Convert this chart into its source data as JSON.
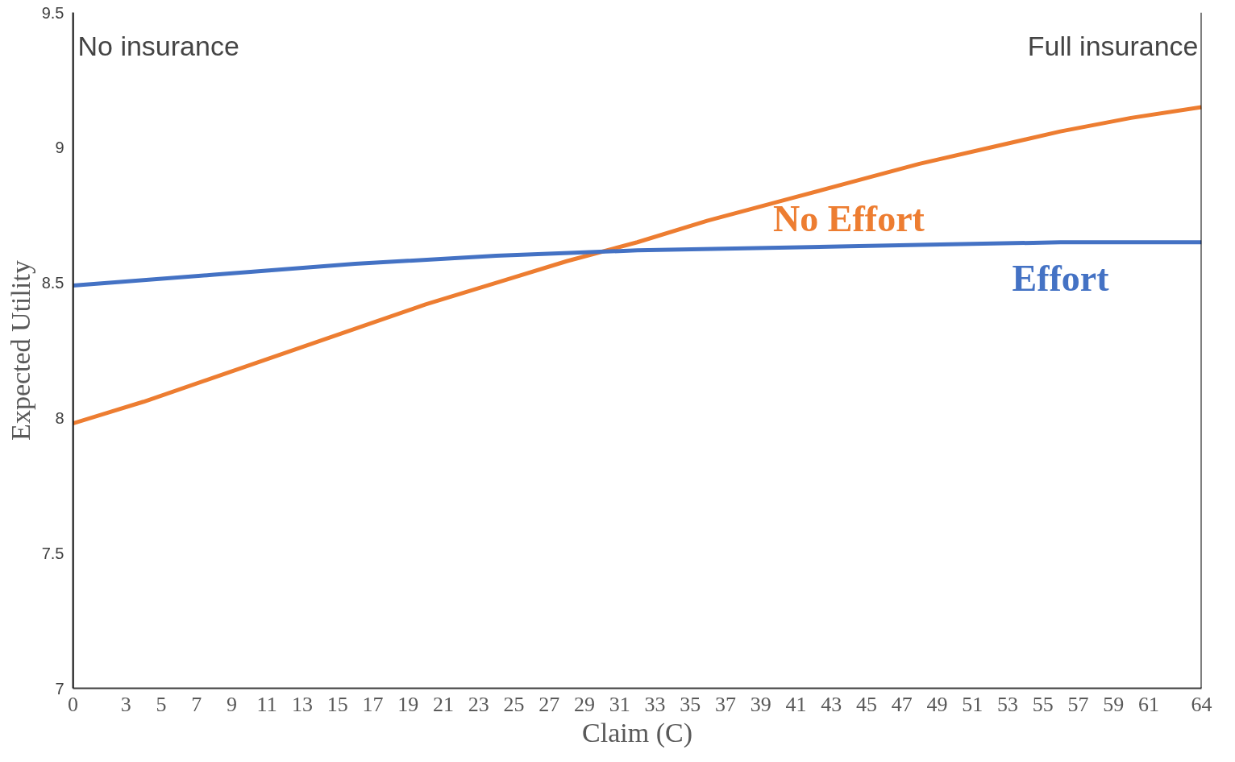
{
  "chart_data": {
    "type": "line",
    "xlabel": "Claim (C)",
    "ylabel": "Expected Utility",
    "xlim": [
      0,
      64
    ],
    "ylim": [
      7,
      9.5
    ],
    "xticks": [
      0,
      3,
      5,
      7,
      9,
      11,
      13,
      15,
      17,
      19,
      21,
      23,
      25,
      27,
      29,
      31,
      33,
      35,
      37,
      39,
      41,
      43,
      45,
      47,
      49,
      51,
      53,
      55,
      57,
      59,
      61,
      64
    ],
    "yticks": [
      7,
      7.5,
      8,
      8.5,
      9,
      9.5
    ],
    "grid": false,
    "legend": false,
    "series": [
      {
        "name": "No Effort",
        "color": "#ed7d31",
        "x": [
          0,
          4,
          8,
          12,
          16,
          20,
          24,
          28,
          32,
          36,
          40,
          44,
          48,
          52,
          56,
          60,
          64
        ],
        "values": [
          7.98,
          8.06,
          8.15,
          8.24,
          8.33,
          8.42,
          8.5,
          8.58,
          8.65,
          8.73,
          8.8,
          8.87,
          8.94,
          9.0,
          9.06,
          9.11,
          9.15
        ]
      },
      {
        "name": "Effort",
        "color": "#4472c4",
        "x": [
          0,
          8,
          16,
          24,
          32,
          40,
          48,
          56,
          64
        ],
        "values": [
          8.49,
          8.53,
          8.57,
          8.6,
          8.62,
          8.63,
          8.64,
          8.65,
          8.65
        ]
      }
    ],
    "ref_lines": [
      {
        "axis": "x",
        "value": 0,
        "label": "No insurance",
        "color": "#000000"
      },
      {
        "axis": "x",
        "value": 64,
        "label": "Full insurance",
        "color": "#000000"
      }
    ]
  }
}
